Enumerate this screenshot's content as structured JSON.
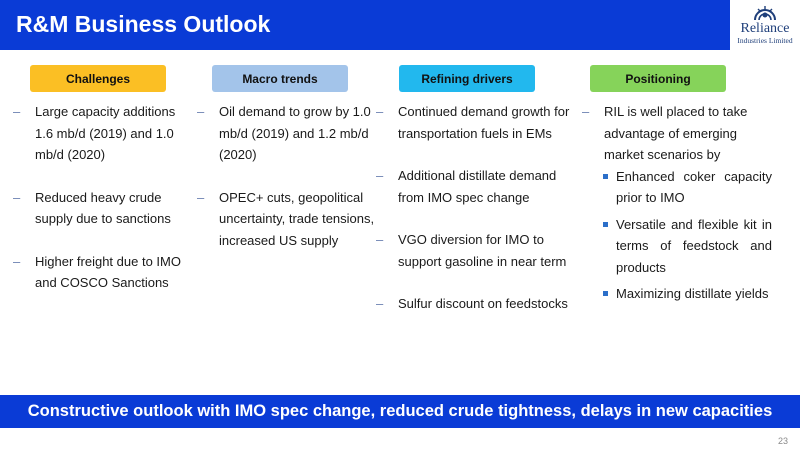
{
  "header": {
    "title": "R&M Business Outlook"
  },
  "logo": {
    "name": "Reliance",
    "subtitle": "Industries Limited"
  },
  "categories": [
    {
      "label": "Challenges",
      "color": "#fbbf24"
    },
    {
      "label": "Macro trends",
      "color": "#a3c4ea"
    },
    {
      "label": "Refining drivers",
      "color": "#22b8ee"
    },
    {
      "label": "Positioning",
      "color": "#86d35a"
    }
  ],
  "columns": {
    "challenges": [
      "Large capacity additions 1.6 mb/d (2019) and 1.0 mb/d (2020)",
      "Reduced heavy crude supply due to sanctions",
      "Higher freight due to IMO and COSCO Sanctions"
    ],
    "macro": [
      "Oil demand to grow by 1.0 mb/d (2019) and 1.2 mb/d (2020)",
      "OPEC+ cuts, geopolitical uncertainty, trade tensions, increased US supply"
    ],
    "drivers": [
      "Continued demand growth for transportation fuels in EMs",
      "Additional distillate demand from IMO spec change",
      "VGO diversion for IMO to support gasoline in near term",
      "Sulfur discount on feedstocks"
    ],
    "positioning": {
      "lead": "RIL is well placed to take advantage of emerging market scenarios by",
      "bullets": [
        "Enhanced coker capacity prior to IMO",
        "Versatile and flexible kit in terms of feedstock and products",
        "Maximizing distillate yields"
      ]
    }
  },
  "footer": {
    "text": "Constructive outlook with IMO spec change, reduced crude tightness, delays in new capacities"
  },
  "page_number": "23"
}
